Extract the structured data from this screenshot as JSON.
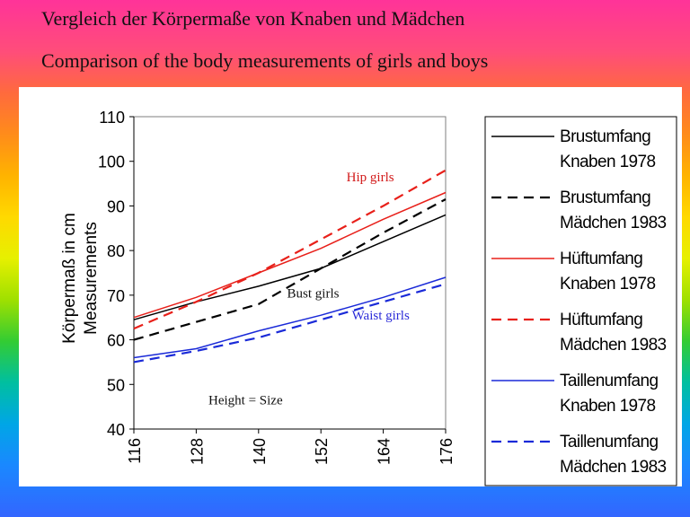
{
  "title_de": "Vergleich der Körpermaße von Knaben und Mädchen",
  "title_en": "Comparison of the body measurements of girls and boys",
  "chart_data": {
    "type": "line",
    "ylabel": "Körpermaß in cm",
    "ylabel2": "Measurements",
    "x": [
      116,
      128,
      140,
      152,
      164,
      176
    ],
    "x_ticks": [
      "116",
      "128",
      "140",
      "152",
      "164",
      "176"
    ],
    "xlim": [
      116,
      176
    ],
    "ylim": [
      40,
      110
    ],
    "y_ticks": [
      40,
      50,
      60,
      70,
      80,
      90,
      100,
      110
    ],
    "grid": false,
    "legend_position": "right",
    "series": [
      {
        "name": "Brustumfang Knaben 1978",
        "name_line1": "Brustumfang",
        "name_line2": "Knaben 1978",
        "color": "#000000",
        "dashed": false,
        "values": [
          64.5,
          68.5,
          72,
          76,
          82,
          88
        ]
      },
      {
        "name": "Brustumfang Mädchen 1983",
        "name_line1": "Brustumfang",
        "name_line2": "Mädchen 1983",
        "color": "#000000",
        "dashed": true,
        "values": [
          60,
          64,
          68,
          76,
          84,
          91.5
        ]
      },
      {
        "name": "Hüftumfang Knaben 1978",
        "name_line1": "Hüftumfang",
        "name_line2": "Knaben 1978",
        "color": "#e8201a",
        "dashed": false,
        "values": [
          65,
          69.5,
          75,
          80.5,
          87,
          93
        ]
      },
      {
        "name": "Hüftumfang Mädchen 1983",
        "name_line1": "Hüftumfang",
        "name_line2": "Mädchen 1983",
        "color": "#e8201a",
        "dashed": true,
        "values": [
          62.5,
          68.5,
          75,
          82.5,
          90,
          98
        ]
      },
      {
        "name": "Taillenumfang Knaben 1978",
        "name_line1": "Taillenumfang",
        "name_line2": "Knaben 1978",
        "color": "#1a2ad8",
        "dashed": false,
        "values": [
          56,
          58,
          62,
          65.5,
          69.5,
          74
        ]
      },
      {
        "name": "Taillenumfang Mädchen 1983",
        "name_line1": "Taillenumfang",
        "name_line2": "Mädchen 1983",
        "color": "#1a2ad8",
        "dashed": true,
        "values": [
          55,
          57.5,
          60.5,
          64.5,
          68.5,
          72.5
        ]
      }
    ],
    "annotations": [
      {
        "text": "Hip girls",
        "color": "#d21a1a",
        "x": 161.5,
        "y": 95.5
      },
      {
        "text": "Bust girls",
        "color": "#111111",
        "x": 150.5,
        "y": 69.5
      },
      {
        "text": "Waist girls",
        "color": "#2b2bd8",
        "x": 163.5,
        "y": 64.5
      },
      {
        "text": "Height = Size",
        "color": "#111111",
        "x": 137.5,
        "y": 45.5
      }
    ]
  }
}
